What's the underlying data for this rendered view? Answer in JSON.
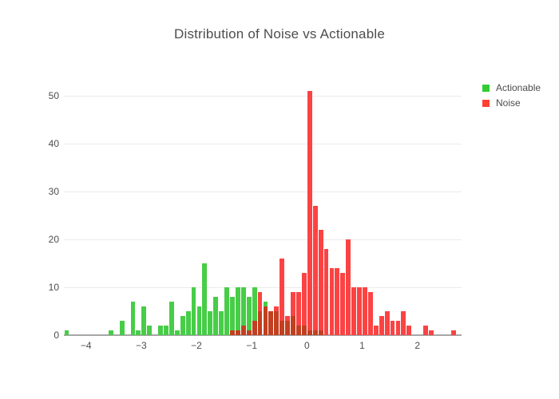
{
  "chart_data": {
    "type": "bar",
    "subtype": "overlaid-histogram",
    "title": "Distribution of Noise vs Actionable",
    "xlabel": "",
    "ylabel": "",
    "bin_start": -4.4,
    "bin_size": 0.1,
    "series": [
      {
        "name": "Actionable",
        "legend_color": "#33cc33",
        "bar_color": "#47cd47",
        "values": [
          1,
          0,
          0,
          0,
          0,
          0,
          0,
          0,
          1,
          0,
          3,
          0,
          7,
          1,
          6,
          2,
          0,
          2,
          2,
          7,
          1,
          4,
          5,
          10,
          6,
          15,
          5,
          8,
          5,
          10,
          8,
          10,
          10,
          8,
          10,
          5,
          7,
          5,
          5,
          3,
          3,
          4,
          2,
          2,
          1,
          1,
          1,
          0,
          0,
          0,
          0,
          0,
          0,
          0,
          0,
          0,
          0,
          0,
          0,
          0,
          0,
          0,
          0,
          0,
          0,
          0,
          0,
          0,
          0,
          0,
          0,
          0
        ]
      },
      {
        "name": "Noise",
        "legend_color": "#ff4033",
        "bar_color": "#fc4343",
        "values": [
          0,
          0,
          0,
          0,
          0,
          0,
          0,
          0,
          0,
          0,
          0,
          0,
          0,
          0,
          0,
          0,
          0,
          0,
          0,
          0,
          0,
          0,
          0,
          0,
          0,
          0,
          0,
          0,
          0,
          0,
          1,
          1,
          2,
          1,
          3,
          9,
          6,
          5,
          6,
          16,
          4,
          9,
          9,
          13,
          51,
          27,
          22,
          18,
          14,
          14,
          13,
          20,
          10,
          10,
          10,
          9,
          2,
          4,
          5,
          3,
          3,
          5,
          2,
          0,
          0,
          2,
          1,
          0,
          0,
          0,
          1,
          0
        ]
      }
    ],
    "overlap_color": "#c23f20",
    "x_ticks": [
      -4,
      -3,
      -2,
      -1,
      0,
      1,
      2
    ],
    "y_ticks": [
      0,
      10,
      20,
      30,
      40,
      50
    ],
    "xlim": [
      -4.4,
      2.8
    ],
    "ylim": [
      0,
      55
    ],
    "grid": "horizontal",
    "legend_position": "top-right",
    "background": "#ffffff"
  }
}
